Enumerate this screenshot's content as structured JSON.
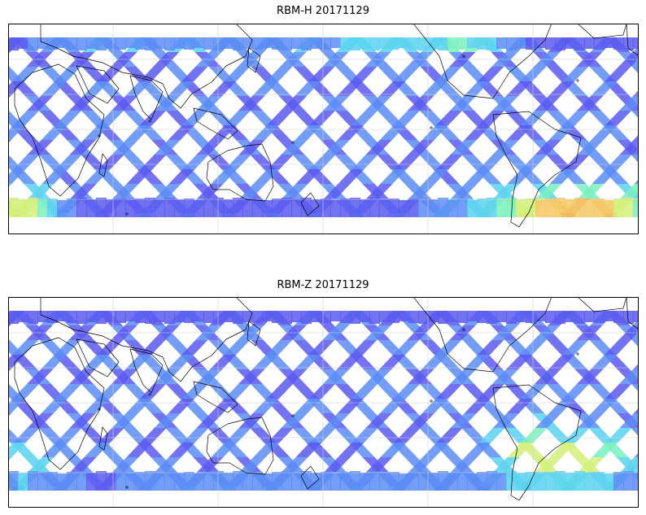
{
  "panels": [
    {
      "title": "RBM-H 20171129",
      "field": "rbm-h"
    },
    {
      "title": "RBM-Z 20171129",
      "field": "rbm-z"
    }
  ],
  "colormap": [
    "#5a5af0",
    "#5a8cf5",
    "#5ad2f0",
    "#7af0c0",
    "#d2f07a",
    "#f5c864",
    "#f08a5a",
    "#d25a5a"
  ]
}
